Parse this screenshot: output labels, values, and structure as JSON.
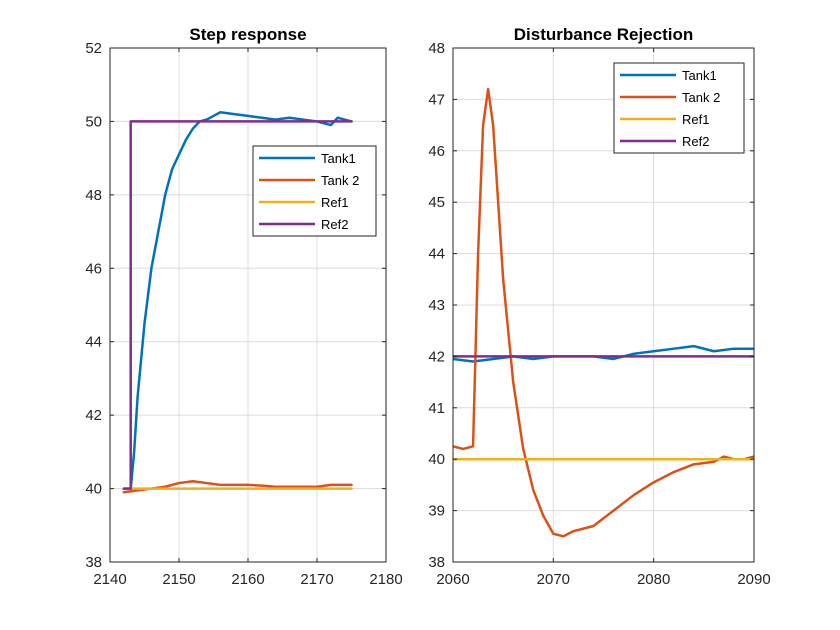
{
  "chart_data": [
    {
      "type": "line",
      "title": "Step response",
      "xlim": [
        2140,
        2180
      ],
      "ylim": [
        38,
        52
      ],
      "xticks": [
        2140,
        2150,
        2160,
        2170,
        2180
      ],
      "yticks": [
        38,
        40,
        42,
        44,
        46,
        48,
        50,
        52
      ],
      "grid": true,
      "legend_position": "right-middle",
      "series": [
        {
          "name": "Tank1",
          "color": "#0072BD",
          "x": [
            2142,
            2143,
            2143.5,
            2144,
            2145,
            2146,
            2147,
            2148,
            2149,
            2150,
            2151,
            2152,
            2153,
            2154,
            2155,
            2156,
            2158,
            2160,
            2162,
            2164,
            2166,
            2168,
            2170,
            2172,
            2173,
            2174,
            2175
          ],
          "y": [
            40.0,
            40.0,
            41.0,
            42.5,
            44.5,
            46.0,
            47.0,
            48.0,
            48.7,
            49.1,
            49.5,
            49.8,
            50.0,
            50.05,
            50.15,
            50.25,
            50.2,
            50.15,
            50.1,
            50.05,
            50.1,
            50.05,
            50.0,
            49.9,
            50.1,
            50.05,
            50.0
          ]
        },
        {
          "name": "Tank 2",
          "color": "#D95319",
          "x": [
            2142,
            2144,
            2146,
            2148,
            2150,
            2152,
            2154,
            2156,
            2158,
            2160,
            2162,
            2164,
            2166,
            2168,
            2170,
            2172,
            2175
          ],
          "y": [
            39.9,
            39.95,
            40.0,
            40.05,
            40.15,
            40.2,
            40.15,
            40.1,
            40.1,
            40.1,
            40.08,
            40.05,
            40.05,
            40.05,
            40.05,
            40.1,
            40.1
          ]
        },
        {
          "name": "Ref1",
          "color": "#EDB120",
          "x": [
            2142,
            2175
          ],
          "y": [
            40,
            40
          ]
        },
        {
          "name": "Ref2",
          "color": "#7E2F8E",
          "x": [
            2142,
            2143,
            2143,
            2175
          ],
          "y": [
            40,
            40,
            50,
            50
          ]
        }
      ]
    },
    {
      "type": "line",
      "title": "Disturbance Rejection",
      "xlim": [
        2060,
        2090
      ],
      "ylim": [
        38,
        48
      ],
      "xticks": [
        2060,
        2070,
        2080,
        2090
      ],
      "yticks": [
        38,
        39,
        40,
        41,
        42,
        43,
        44,
        45,
        46,
        47,
        48
      ],
      "grid": true,
      "legend_position": "top-right",
      "series": [
        {
          "name": "Tank1",
          "color": "#0072BD",
          "x": [
            2060,
            2062,
            2064,
            2066,
            2068,
            2070,
            2072,
            2074,
            2076,
            2078,
            2080,
            2082,
            2084,
            2086,
            2088,
            2090
          ],
          "y": [
            41.95,
            41.9,
            41.95,
            42.0,
            41.95,
            42.0,
            42.0,
            42.0,
            41.95,
            42.05,
            42.1,
            42.15,
            42.2,
            42.1,
            42.15,
            42.15
          ]
        },
        {
          "name": "Tank 2",
          "color": "#D95319",
          "x": [
            2060,
            2061,
            2062,
            2062.5,
            2063,
            2063.5,
            2064,
            2065,
            2066,
            2067,
            2068,
            2069,
            2070,
            2071,
            2072,
            2074,
            2076,
            2078,
            2080,
            2082,
            2084,
            2086,
            2087,
            2088,
            2089,
            2090
          ],
          "y": [
            40.25,
            40.2,
            40.25,
            44.0,
            46.5,
            47.2,
            46.5,
            43.5,
            41.5,
            40.2,
            39.4,
            38.9,
            38.55,
            38.5,
            38.6,
            38.7,
            39.0,
            39.3,
            39.55,
            39.75,
            39.9,
            39.95,
            40.05,
            40.0,
            40.0,
            40.05
          ]
        },
        {
          "name": "Ref1",
          "color": "#EDB120",
          "x": [
            2060,
            2090
          ],
          "y": [
            40,
            40
          ]
        },
        {
          "name": "Ref2",
          "color": "#7E2F8E",
          "x": [
            2060,
            2090
          ],
          "y": [
            42,
            42
          ]
        }
      ]
    }
  ]
}
